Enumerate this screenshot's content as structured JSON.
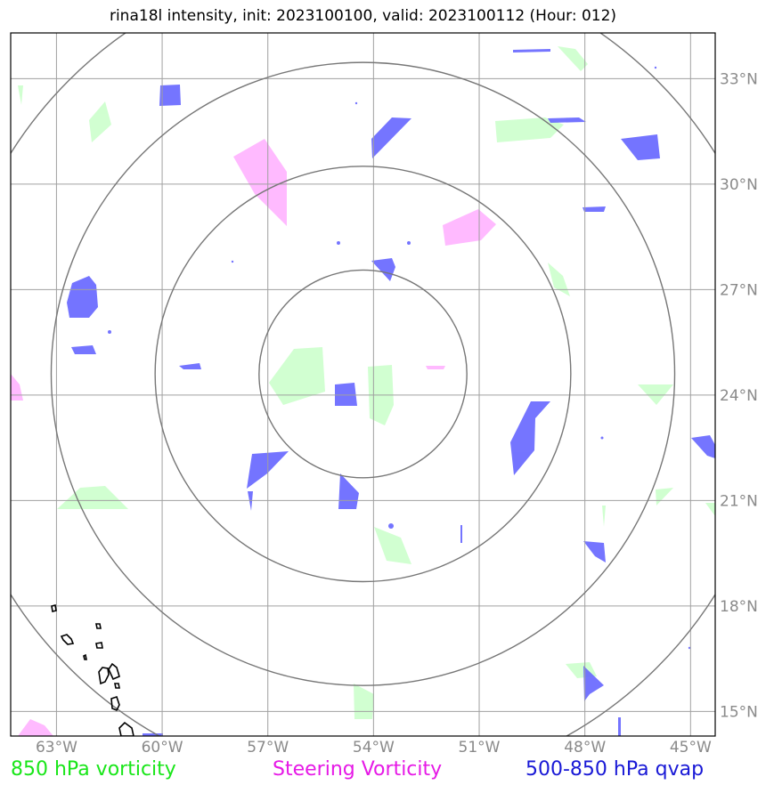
{
  "title": "rina18l intensity, init: 2023100100, valid: 2023100112 (Hour: 012)",
  "map": {
    "lon_range": [
      -64.3,
      -44.3
    ],
    "lat_range": [
      14.3,
      34.3
    ],
    "lon_ticks": [
      {
        "value": -63,
        "label": "63°W"
      },
      {
        "value": -60,
        "label": "60°W"
      },
      {
        "value": -57,
        "label": "57°W"
      },
      {
        "value": -54,
        "label": "54°W"
      },
      {
        "value": -51,
        "label": "51°W"
      },
      {
        "value": -48,
        "label": "48°W"
      },
      {
        "value": -45,
        "label": "45°W"
      }
    ],
    "lat_ticks": [
      {
        "value": 15,
        "label": "15°N"
      },
      {
        "value": 18,
        "label": "18°N"
      },
      {
        "value": 21,
        "label": "21°N"
      },
      {
        "value": 24,
        "label": "24°N"
      },
      {
        "value": 27,
        "label": "27°N"
      },
      {
        "value": 30,
        "label": "30°N"
      },
      {
        "value": 33,
        "label": "33°N"
      }
    ],
    "storm_center": {
      "lon": -54.3,
      "lat": 24.6
    },
    "range_rings_deg": [
      2.95,
      5.9,
      8.85,
      11.8
    ],
    "colors": {
      "vort850": "#ccffcc",
      "steering": "#ffb3ff",
      "qvap": "#6666ff",
      "ring": "#777777",
      "grid": "#a0a0a0",
      "coast": "#000000"
    }
  },
  "legend": {
    "vort850": "850 hPa vorticity",
    "steering": "Steering Vorticity",
    "qvap": "500-850 hPa qvap"
  }
}
